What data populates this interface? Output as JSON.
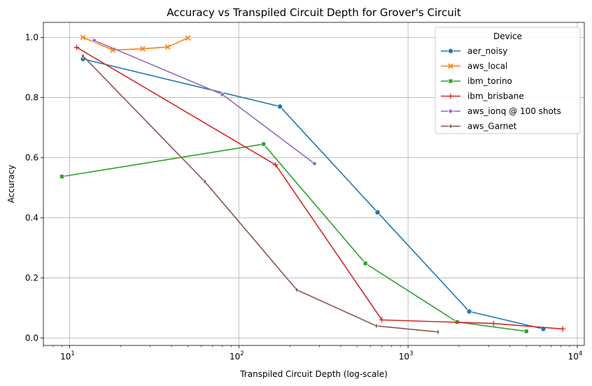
{
  "chart_data": {
    "type": "line",
    "title": "Accuracy vs Transpiled Circuit Depth for Grover's Circuit",
    "xlabel": "Transpiled Circuit Depth (log-scale)",
    "ylabel": "Accuracy",
    "x_scale": "log",
    "xlim": [
      7,
      11000
    ],
    "ylim": [
      -0.025,
      1.05
    ],
    "x_ticks": [
      {
        "value": 10,
        "base": "10",
        "exp": "1"
      },
      {
        "value": 100,
        "base": "10",
        "exp": "2"
      },
      {
        "value": 1000,
        "base": "10",
        "exp": "3"
      },
      {
        "value": 10000,
        "base": "10",
        "exp": "4"
      }
    ],
    "y_ticks": [
      {
        "value": 0.0,
        "label": "0.0"
      },
      {
        "value": 0.2,
        "label": "0.2"
      },
      {
        "value": 0.4,
        "label": "0.4"
      },
      {
        "value": 0.6,
        "label": "0.6"
      },
      {
        "value": 0.8,
        "label": "0.8"
      },
      {
        "value": 1.0,
        "label": "1.0"
      }
    ],
    "grid": true,
    "legend_title": "Device",
    "legend_placement": "top-right",
    "series": [
      {
        "name": "aer_noisy",
        "color": "#1f77b4",
        "marker": "circle",
        "points": [
          [
            12,
            0.928
          ],
          [
            175,
            0.77
          ],
          [
            660,
            0.418
          ],
          [
            2300,
            0.088
          ],
          [
            6300,
            0.03
          ]
        ]
      },
      {
        "name": "aws_local",
        "color": "#ff7f0e",
        "marker": "x",
        "points": [
          [
            12,
            1.0
          ],
          [
            18,
            0.958
          ],
          [
            27,
            0.962
          ],
          [
            38,
            0.968
          ],
          [
            50,
            0.998
          ]
        ]
      },
      {
        "name": "ibm_torino",
        "color": "#2ca02c",
        "marker": "square",
        "points": [
          [
            9,
            0.537
          ],
          [
            140,
            0.645
          ],
          [
            560,
            0.248
          ],
          [
            1950,
            0.053
          ],
          [
            5000,
            0.022
          ]
        ]
      },
      {
        "name": "ibm_brisbane",
        "color": "#d62728",
        "marker": "plus",
        "points": [
          [
            11,
            0.967
          ],
          [
            165,
            0.576
          ],
          [
            700,
            0.06
          ],
          [
            3200,
            0.048
          ],
          [
            8200,
            0.03
          ]
        ]
      },
      {
        "name": "aws_ionq @ 100 shots",
        "color": "#9467bd",
        "marker": "diamond",
        "points": [
          [
            14,
            0.99
          ],
          [
            80,
            0.81
          ],
          [
            280,
            0.58
          ]
        ]
      },
      {
        "name": "aws_Garnet",
        "color": "#8c564b",
        "marker": "thin-diamond",
        "points": [
          [
            12,
            0.938
          ],
          [
            63,
            0.52
          ],
          [
            220,
            0.16
          ],
          [
            650,
            0.04
          ],
          [
            1500,
            0.02
          ]
        ]
      }
    ]
  }
}
